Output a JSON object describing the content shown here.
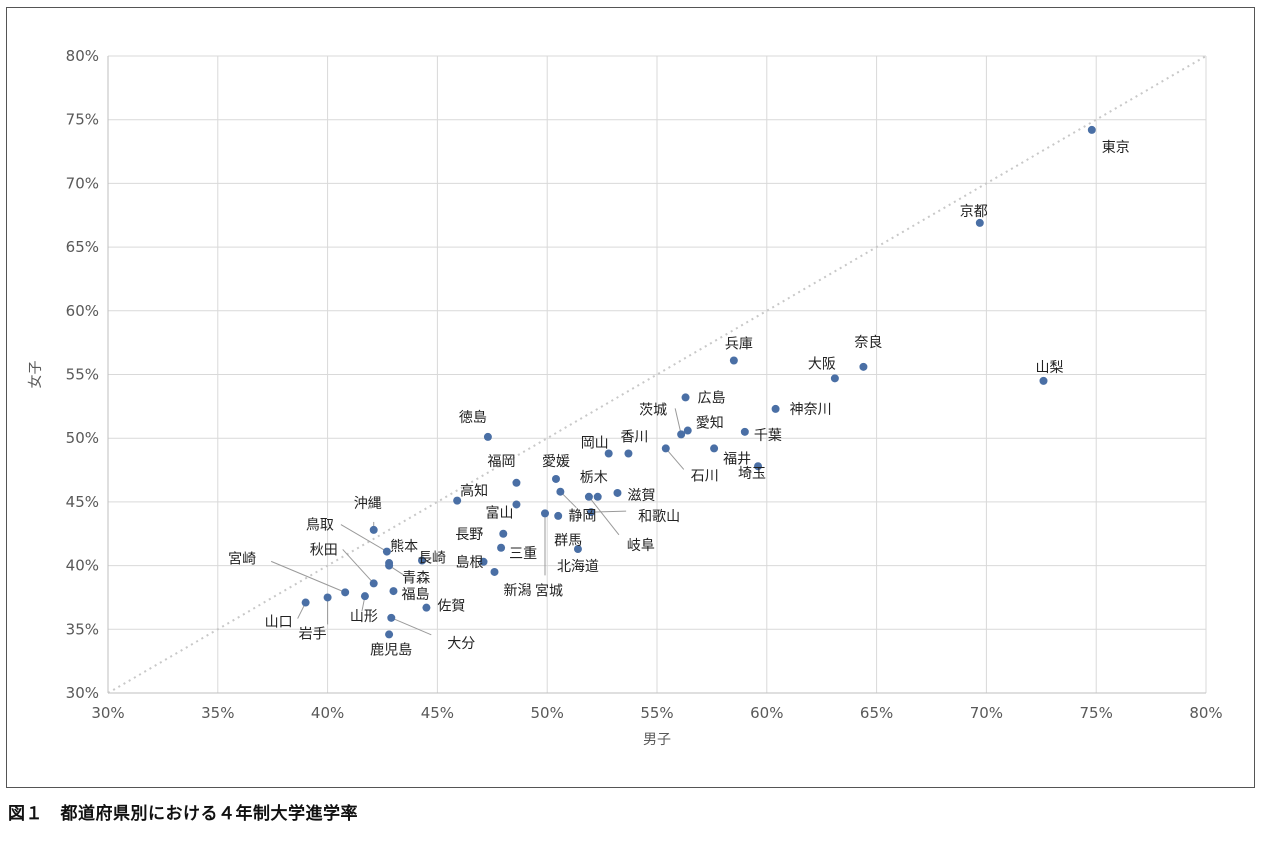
{
  "caption": "図１　都道府県別における４年制大学進学率",
  "chart_data": {
    "type": "scatter",
    "xlabel": "男子",
    "ylabel": "女子",
    "xlim": [
      0.3,
      0.8
    ],
    "ylim": [
      0.3,
      0.8
    ],
    "xticks": [
      "30%",
      "35%",
      "40%",
      "45%",
      "50%",
      "55%",
      "60%",
      "65%",
      "70%",
      "75%",
      "80%"
    ],
    "yticks": [
      "30%",
      "35%",
      "40%",
      "45%",
      "50%",
      "55%",
      "60%",
      "65%",
      "70%",
      "75%",
      "80%"
    ],
    "reference_line": "y = x",
    "grid": true,
    "marker_color": "#4a6fa5",
    "points": [
      {
        "name": "東京",
        "x": 0.748,
        "y": 0.742
      },
      {
        "name": "京都",
        "x": 0.697,
        "y": 0.669
      },
      {
        "name": "山梨",
        "x": 0.726,
        "y": 0.545
      },
      {
        "name": "奈良",
        "x": 0.644,
        "y": 0.556
      },
      {
        "name": "大阪",
        "x": 0.631,
        "y": 0.547
      },
      {
        "name": "兵庫",
        "x": 0.585,
        "y": 0.561
      },
      {
        "name": "神奈川",
        "x": 0.604,
        "y": 0.523
      },
      {
        "name": "千葉",
        "x": 0.59,
        "y": 0.505
      },
      {
        "name": "埼玉",
        "x": 0.596,
        "y": 0.478
      },
      {
        "name": "福井",
        "x": 0.576,
        "y": 0.492
      },
      {
        "name": "広島",
        "x": 0.563,
        "y": 0.532
      },
      {
        "name": "愛知",
        "x": 0.564,
        "y": 0.506
      },
      {
        "name": "茨城",
        "x": 0.561,
        "y": 0.503
      },
      {
        "name": "石川",
        "x": 0.554,
        "y": 0.492
      },
      {
        "name": "香川",
        "x": 0.537,
        "y": 0.488
      },
      {
        "name": "岡山",
        "x": 0.528,
        "y": 0.488
      },
      {
        "name": "滋賀",
        "x": 0.532,
        "y": 0.457
      },
      {
        "name": "栃木",
        "x": 0.523,
        "y": 0.454
      },
      {
        "name": "和歌山",
        "x": 0.52,
        "y": 0.442
      },
      {
        "name": "岐阜",
        "x": 0.519,
        "y": 0.454
      },
      {
        "name": "静岡",
        "x": 0.506,
        "y": 0.458
      },
      {
        "name": "愛媛",
        "x": 0.504,
        "y": 0.468
      },
      {
        "name": "群馬",
        "x": 0.505,
        "y": 0.439
      },
      {
        "name": "宮城",
        "x": 0.499,
        "y": 0.441
      },
      {
        "name": "北海道",
        "x": 0.514,
        "y": 0.413
      },
      {
        "name": "富山",
        "x": 0.486,
        "y": 0.448
      },
      {
        "name": "福岡",
        "x": 0.486,
        "y": 0.465
      },
      {
        "name": "長野",
        "x": 0.48,
        "y": 0.425
      },
      {
        "name": "三重",
        "x": 0.479,
        "y": 0.414
      },
      {
        "name": "徳島",
        "x": 0.473,
        "y": 0.501
      },
      {
        "name": "高知",
        "x": 0.459,
        "y": 0.451
      },
      {
        "name": "島根",
        "x": 0.471,
        "y": 0.403
      },
      {
        "name": "新潟",
        "x": 0.476,
        "y": 0.395
      },
      {
        "name": "長崎",
        "x": 0.443,
        "y": 0.404
      },
      {
        "name": "佐賀",
        "x": 0.445,
        "y": 0.367
      },
      {
        "name": "沖縄",
        "x": 0.421,
        "y": 0.428
      },
      {
        "name": "熊本",
        "x": 0.428,
        "y": 0.402
      },
      {
        "name": "鳥取",
        "x": 0.427,
        "y": 0.411
      },
      {
        "name": "青森",
        "x": 0.428,
        "y": 0.4
      },
      {
        "name": "秋田",
        "x": 0.421,
        "y": 0.386
      },
      {
        "name": "福島",
        "x": 0.43,
        "y": 0.38
      },
      {
        "name": "大分",
        "x": 0.429,
        "y": 0.359
      },
      {
        "name": "鹿児島",
        "x": 0.428,
        "y": 0.346
      },
      {
        "name": "宮崎",
        "x": 0.408,
        "y": 0.379
      },
      {
        "name": "山形",
        "x": 0.417,
        "y": 0.376
      },
      {
        "name": "岩手",
        "x": 0.4,
        "y": 0.375
      },
      {
        "name": "山口",
        "x": 0.39,
        "y": 0.371
      }
    ]
  }
}
